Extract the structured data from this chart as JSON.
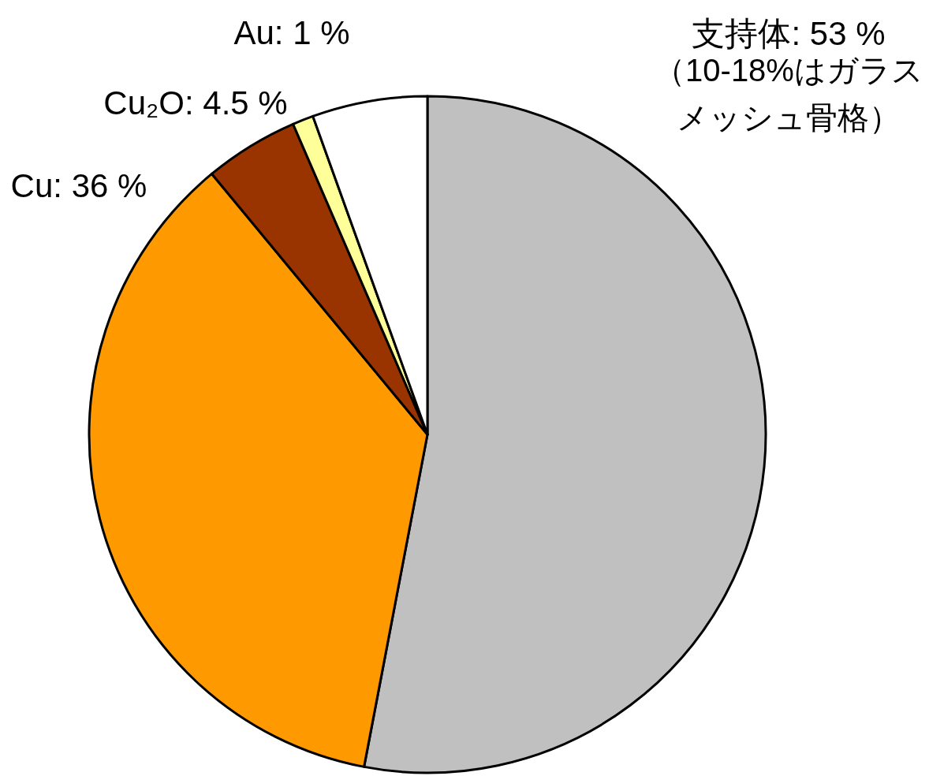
{
  "chart_data": {
    "type": "pie",
    "categories": [
      "支持体",
      "Cu",
      "Cu₂O",
      "Au",
      null
    ],
    "values": [
      53,
      36,
      4.5,
      1,
      5.5
    ],
    "colors": [
      "#c0c0c0",
      "#ff9900",
      "#993300",
      "#ffff99",
      "#ffffff"
    ],
    "value_labels": [
      "53 %",
      "36 %",
      "4.5 %",
      "1 %",
      null
    ],
    "annotations": [
      "（10-18%はガラスメッシュ骨格）"
    ]
  }
}
